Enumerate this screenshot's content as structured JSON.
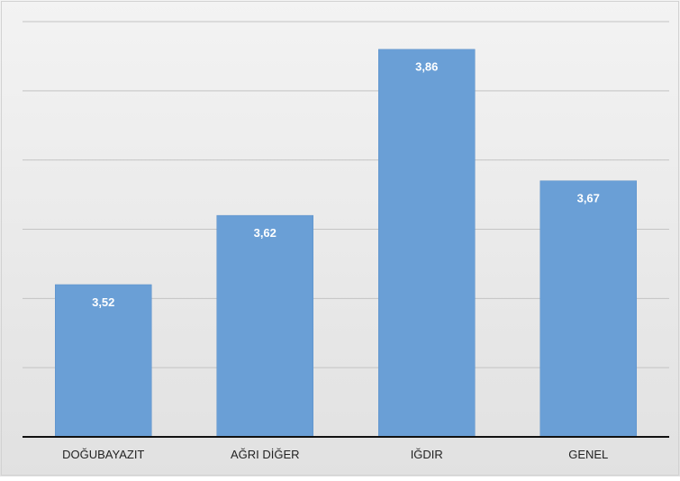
{
  "chart_data": {
    "type": "bar",
    "categories": [
      "DOĞUBAYAZIT",
      "AĞRI DİĞER",
      "IĞDIR",
      "GENEL"
    ],
    "values": [
      3.52,
      3.62,
      3.86,
      3.67
    ],
    "value_labels": [
      "3,52",
      "3,62",
      "3,86",
      "3,67"
    ],
    "title": "",
    "xlabel": "",
    "ylabel": "",
    "ylim": [
      3.3,
      3.9
    ],
    "grid": true,
    "legend": "none",
    "colors": {
      "bar": "#6a9fd6",
      "bar_edge": "#5b8fc8",
      "grid": "#c4c4c4",
      "axis": "#111111",
      "background_top": "#f3f3f3",
      "background_bottom": "#e1e1e1",
      "label_text": "#ffffff",
      "category_text": "#222222"
    }
  }
}
